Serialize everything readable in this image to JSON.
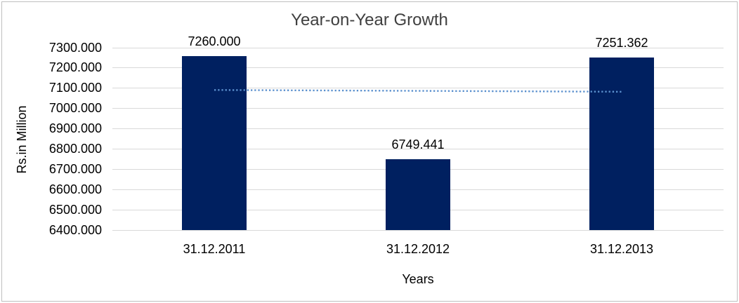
{
  "chart_data": {
    "type": "bar",
    "title": "Year-on-Year Growth",
    "xlabel": "Years",
    "ylabel": "Rs.in Million",
    "categories": [
      "31.12.2011",
      "31.12.2012",
      "31.12.2013"
    ],
    "values": [
      7260.0,
      6749.441,
      7251.362
    ],
    "value_labels": [
      "7260.000",
      "6749.441",
      "7251.362"
    ],
    "ylim": [
      6400,
      7300
    ],
    "ytick_step": 100,
    "ytick_decimals": 3,
    "grid": true,
    "legend": "none",
    "bar_color": "#002060",
    "gridline_color": "#D9D9D9",
    "axis_text_color": "#000000",
    "title_color": "#404040",
    "frame_border_color": "#BFBFBF",
    "trendline": {
      "type": "linear",
      "style": "dotted",
      "color": "#5C91CE",
      "start_value": 7091.3,
      "end_value": 7082.6
    }
  }
}
